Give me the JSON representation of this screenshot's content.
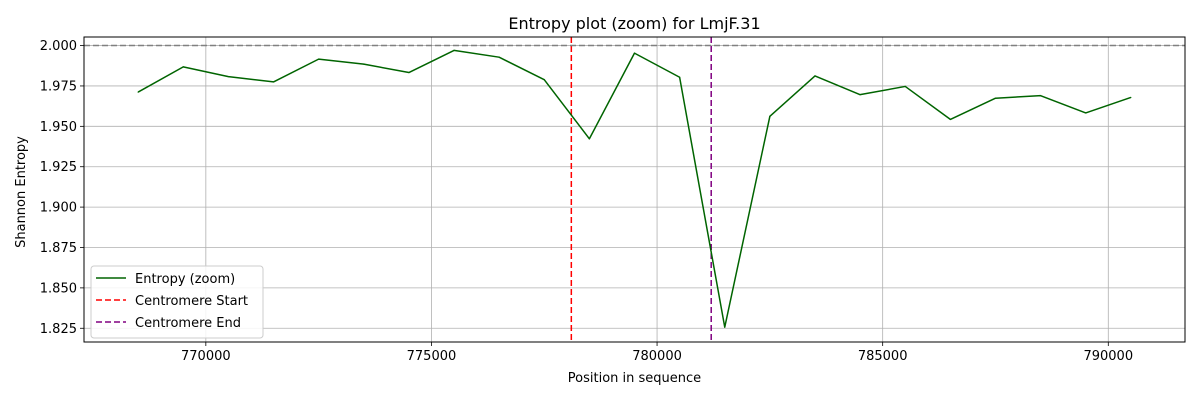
{
  "chart_data": {
    "type": "line",
    "title": "Entropy plot (zoom) for LmjF.31",
    "xlabel": "Position in sequence",
    "ylabel": "Shannon Entropy",
    "xlim": [
      767300,
      791700
    ],
    "ylim": [
      1.8165,
      2.0053
    ],
    "xticks": [
      770000,
      775000,
      780000,
      785000,
      790000
    ],
    "yticks": [
      1.825,
      1.85,
      1.875,
      1.9,
      1.925,
      1.95,
      1.975,
      2.0
    ],
    "ytick_labels": [
      "1.825",
      "1.850",
      "1.875",
      "1.900",
      "1.925",
      "1.950",
      "1.975",
      "2.000"
    ],
    "grid": true,
    "legend_position": "lower-left",
    "series": [
      {
        "name": "Entropy (zoom)",
        "color": "#006400",
        "style": "solid",
        "x": [
          768500,
          769500,
          770500,
          771500,
          772500,
          773500,
          774500,
          775500,
          776500,
          777500,
          778500,
          779500,
          780500,
          781500,
          782500,
          783500,
          784500,
          785500,
          786500,
          787500,
          788500,
          789500,
          790500
        ],
        "y": [
          1.9712,
          1.9868,
          1.9808,
          1.9775,
          1.9916,
          1.9885,
          1.9833,
          1.997,
          1.9928,
          1.9789,
          1.9423,
          1.9953,
          1.9804,
          1.8257,
          1.9562,
          1.9812,
          1.9696,
          1.9747,
          1.9543,
          1.9674,
          1.969,
          1.9583,
          1.9679
        ]
      }
    ],
    "reference_lines": [
      {
        "name": "Centromere Start",
        "orientation": "vertical",
        "value": 778100,
        "color": "#ff0000",
        "style": "dashed"
      },
      {
        "name": "Centromere End",
        "orientation": "vertical",
        "value": 781200,
        "color": "#800080",
        "style": "dashed"
      },
      {
        "name": "",
        "orientation": "horizontal",
        "value": 2.0,
        "color": "#808080",
        "style": "dashed"
      }
    ]
  }
}
